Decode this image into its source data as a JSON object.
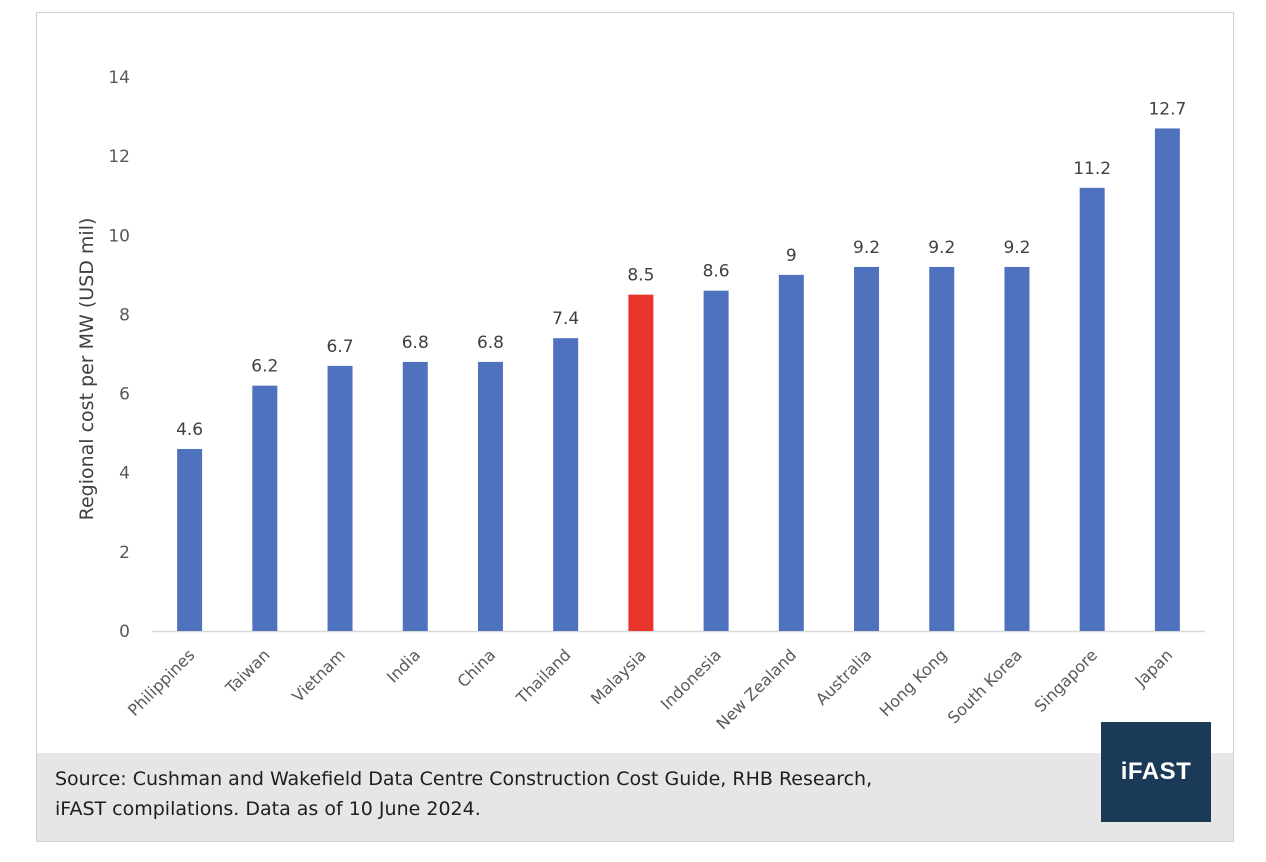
{
  "chart_data": {
    "type": "bar",
    "title": "",
    "xlabel": "",
    "ylabel": "Regional cost per MW (USD mil)",
    "ylim": [
      0,
      14
    ],
    "yticks": [
      0,
      2,
      4,
      6,
      8,
      10,
      12,
      14
    ],
    "categories": [
      "Philippines",
      "Taiwan",
      "Vietnam",
      "India",
      "China",
      "Thailand",
      "Malaysia",
      "Indonesia",
      "New Zealand",
      "Australia",
      "Hong Kong",
      "South Korea",
      "Singapore",
      "Japan"
    ],
    "values": [
      4.6,
      6.2,
      6.7,
      6.8,
      6.8,
      7.4,
      8.5,
      8.6,
      9,
      9.2,
      9.2,
      9.2,
      11.2,
      12.7
    ],
    "data_labels": [
      "4.6",
      "6.2",
      "6.7",
      "6.8",
      "6.8",
      "7.4",
      "8.5",
      "8.6",
      "9",
      "9.2",
      "9.2",
      "9.2",
      "11.2",
      "12.7"
    ],
    "grid": false,
    "legend": "none",
    "bar_color": "#4f72be",
    "highlight_category": "Malaysia",
    "highlight_color": "#e8342a"
  },
  "footer": {
    "source_line1": "Source: Cushman and Wakefield Data Centre Construction Cost Guide, RHB Research,",
    "source_line2": "iFAST compilations. Data as of 10 June 2024."
  },
  "logo": {
    "text": "iFAST",
    "color": "#1b3a57"
  }
}
